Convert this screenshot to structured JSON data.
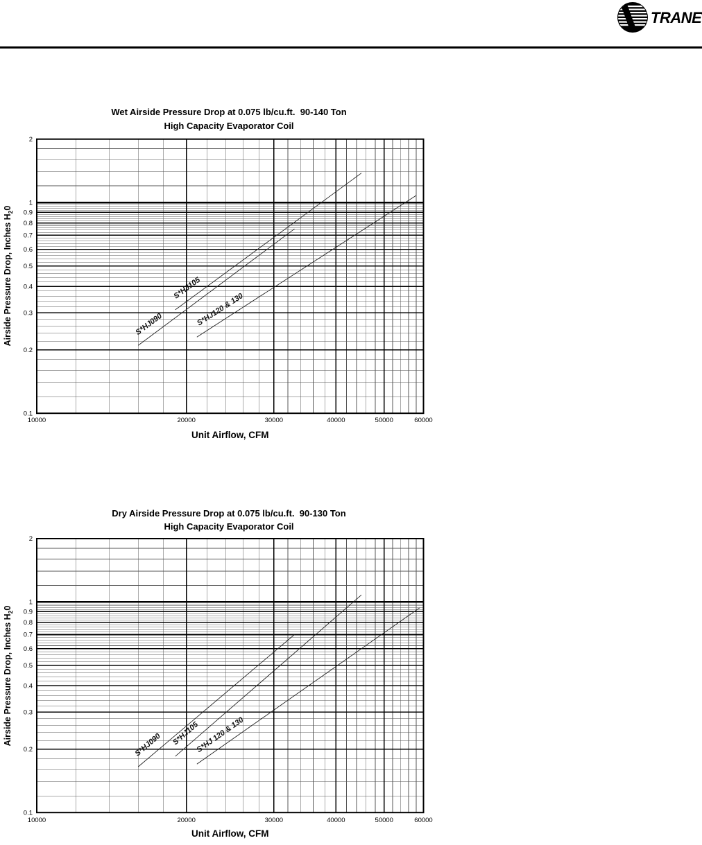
{
  "header": {
    "brand": "TRANE",
    "registered": "®",
    "logo": "trane-circle-swirl-logo",
    "accent_color": "#000000"
  },
  "chart_data": [
    {
      "type": "line",
      "title": "Wet Airside Pressure Drop at 0.075 lb/cu.ft.  90-140 Ton",
      "subtitle": "High Capacity Evaporator Coil",
      "xlabel": "Unit Airflow, CFM",
      "ylabel": {
        "prefix": "Airside Pressure Drop, Inches H",
        "sub": "2",
        "suffix": "0"
      },
      "xscale": "log",
      "yscale": "log",
      "xlim": [
        10000,
        60000
      ],
      "ylim": [
        0.1,
        2
      ],
      "grid": true,
      "legend_position": "labels-on-lines",
      "xticks": [
        10000,
        20000,
        30000,
        40000,
        50000,
        60000
      ],
      "xtick_labels": [
        "10000",
        "20000",
        "30000",
        "40000",
        "50000",
        "60000"
      ],
      "yticks": [
        2,
        1,
        0.9,
        0.8,
        0.7,
        0.6,
        0.5,
        0.4,
        0.3,
        0.2,
        0.1
      ],
      "ytick_labels": [
        "2",
        "1",
        "0.9",
        "0.8",
        "0.7",
        "0.6",
        "0.5",
        "0.4",
        "0.3",
        "0.2",
        "0.1"
      ],
      "x_minor_step": 2000,
      "y_minor": [
        {
          "from": 0.1,
          "to": 1,
          "step": 0.02
        },
        {
          "from": 1,
          "to": 2,
          "step": 0.2
        }
      ],
      "series": [
        {
          "name": "S*HJ090",
          "points": [
            [
              16000,
              0.21
            ],
            [
              33000,
              0.75
            ]
          ],
          "color": "#222222"
        },
        {
          "name": "S*HJ105",
          "points": [
            [
              19000,
              0.31
            ],
            [
              45000,
              1.38
            ]
          ],
          "color": "#222222"
        },
        {
          "name": "S*HJ120 & 130",
          "points": [
            [
              21000,
              0.23
            ],
            [
              58000,
              1.08
            ]
          ],
          "color": "#222222"
        }
      ]
    },
    {
      "type": "line",
      "title": "Dry Airside Pressure Drop at 0.075 lb/cu.ft.  90-130 Ton",
      "subtitle": "High Capacity Evaporator Coil",
      "xlabel": "Unit Airflow, CFM",
      "ylabel": {
        "prefix": "Airside Pressure Drop, Inches H",
        "sub": "2",
        "suffix": "0"
      },
      "xscale": "log",
      "yscale": "log",
      "xlim": [
        10000,
        60000
      ],
      "ylim": [
        0.1,
        2
      ],
      "grid": true,
      "legend_position": "labels-on-lines",
      "xticks": [
        10000,
        20000,
        30000,
        40000,
        50000,
        60000
      ],
      "xtick_labels": [
        "10000",
        "20000",
        "30000",
        "40000",
        "50000",
        "60000"
      ],
      "yticks": [
        2,
        1,
        0.9,
        0.8,
        0.7,
        0.6,
        0.5,
        0.4,
        0.3,
        0.2,
        0.1
      ],
      "ytick_labels": [
        "2",
        "1",
        "0.9",
        "0.8",
        "0.7",
        "0.6",
        "0.5",
        "0.4",
        "0.3",
        "0.2",
        "0.1"
      ],
      "x_minor_step": 2000,
      "y_minor": [
        {
          "from": 0.1,
          "to": 1,
          "step": 0.02
        },
        {
          "from": 1,
          "to": 2,
          "step": 0.2
        }
      ],
      "series": [
        {
          "name": "S*HJ090",
          "points": [
            [
              16000,
              0.165
            ],
            [
              33000,
              0.7
            ]
          ],
          "color": "#222222"
        },
        {
          "name": "S*HJ105",
          "points": [
            [
              19000,
              0.185
            ],
            [
              45000,
              1.08
            ]
          ],
          "color": "#222222"
        },
        {
          "name": "S*HJ 120 & 130",
          "points": [
            [
              21000,
              0.17
            ],
            [
              59000,
              0.94
            ]
          ],
          "color": "#222222"
        }
      ]
    }
  ]
}
